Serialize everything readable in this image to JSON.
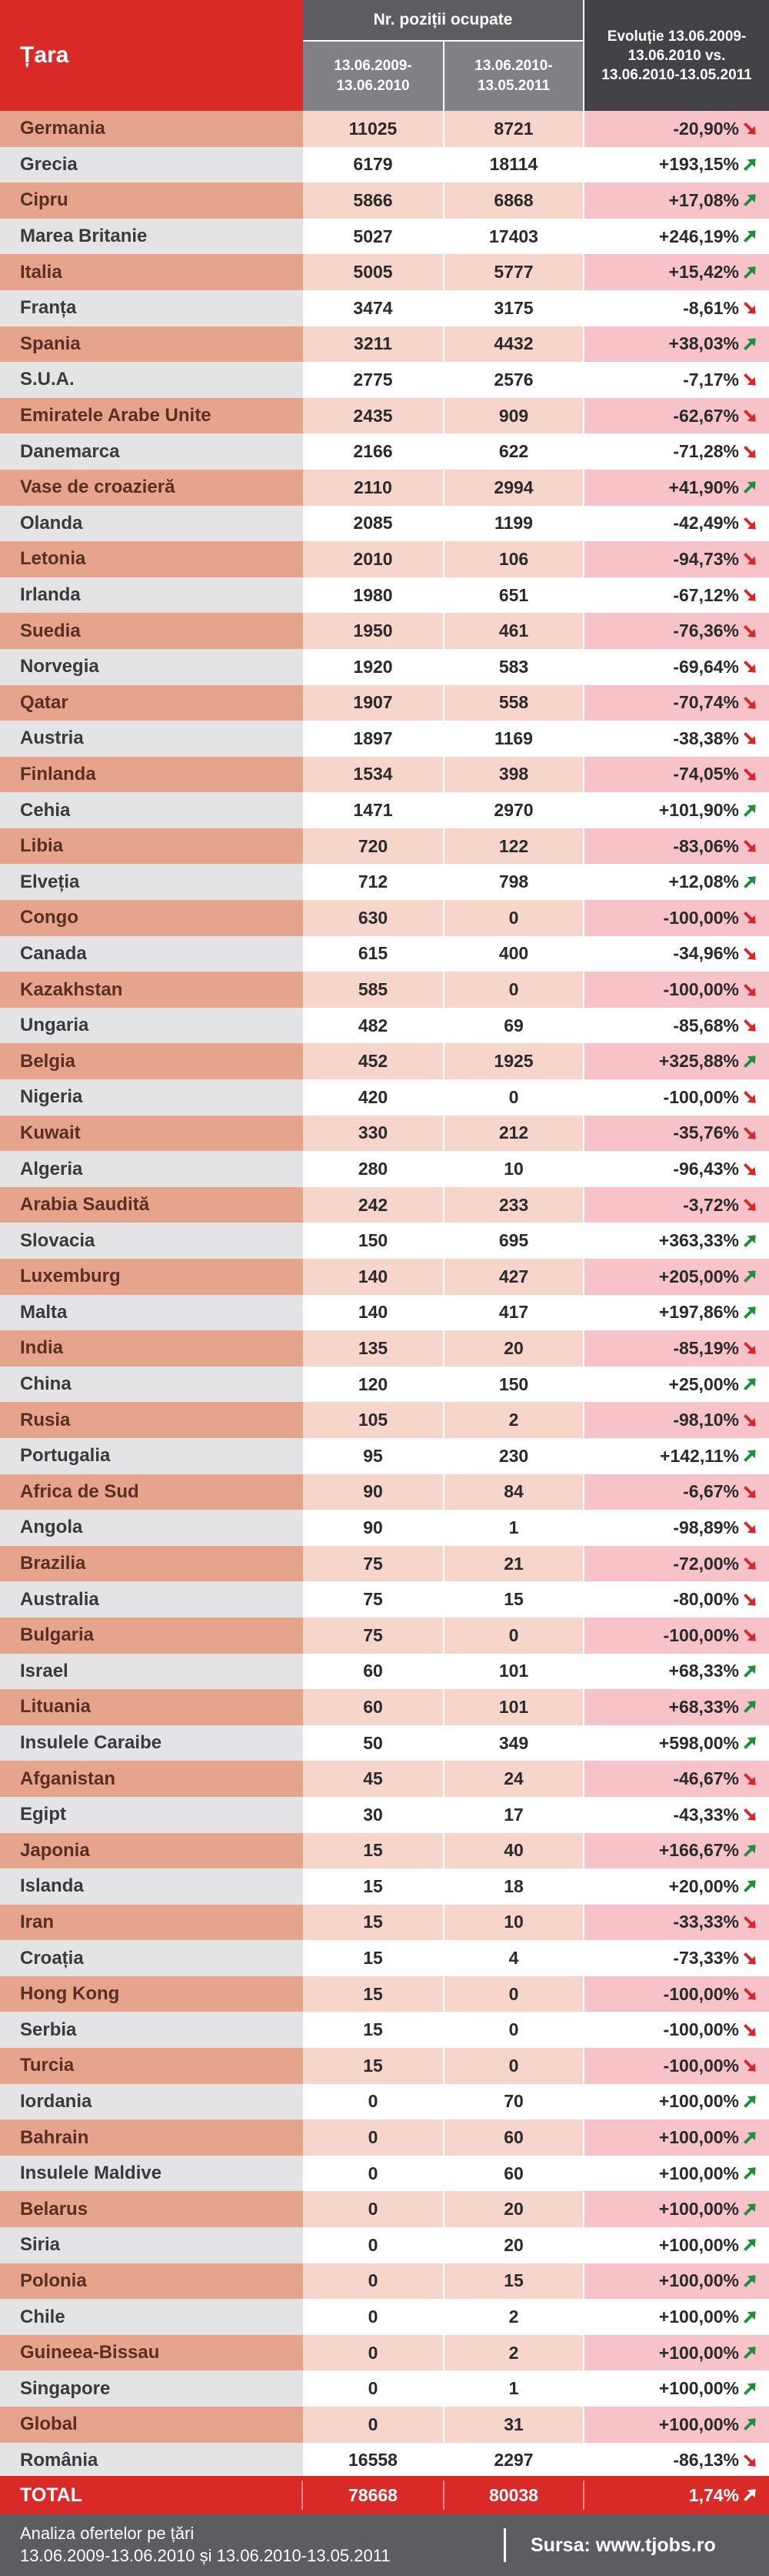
{
  "header": {
    "col_country": "Țara",
    "col_positions": "Nr. poziții ocupate",
    "col_period1": "13.06.2009-\n13.06.2010",
    "col_period2": "13.06.2010-\n13.05.2011",
    "col_evolution": "Evoluție 13.06.2009-\n13.06.2010 vs.\n13.06.2010-13.05.2011"
  },
  "colors": {
    "up": "#1e8f3a",
    "down": "#d8262a",
    "accent": "#da2a28"
  },
  "rows": [
    {
      "country": "Germania",
      "p1": "11025",
      "p2": "8721",
      "evo": "-20,90%",
      "trend": "down"
    },
    {
      "country": "Grecia",
      "p1": "6179",
      "p2": "18114",
      "evo": "+193,15%",
      "trend": "up"
    },
    {
      "country": "Cipru",
      "p1": "5866",
      "p2": "6868",
      "evo": "+17,08%",
      "trend": "up"
    },
    {
      "country": "Marea Britanie",
      "p1": "5027",
      "p2": "17403",
      "evo": "+246,19%",
      "trend": "up"
    },
    {
      "country": "Italia",
      "p1": "5005",
      "p2": "5777",
      "evo": "+15,42%",
      "trend": "up"
    },
    {
      "country": "Franța",
      "p1": "3474",
      "p2": "3175",
      "evo": "-8,61%",
      "trend": "down"
    },
    {
      "country": "Spania",
      "p1": "3211",
      "p2": "4432",
      "evo": "+38,03%",
      "trend": "up"
    },
    {
      "country": "S.U.A.",
      "p1": "2775",
      "p2": "2576",
      "evo": "-7,17%",
      "trend": "down"
    },
    {
      "country": "Emiratele Arabe Unite",
      "p1": "2435",
      "p2": "909",
      "evo": "-62,67%",
      "trend": "down"
    },
    {
      "country": "Danemarca",
      "p1": "2166",
      "p2": "622",
      "evo": "-71,28%",
      "trend": "down"
    },
    {
      "country": "Vase de croazieră",
      "p1": "2110",
      "p2": "2994",
      "evo": "+41,90%",
      "trend": "up"
    },
    {
      "country": "Olanda",
      "p1": "2085",
      "p2": "1199",
      "evo": "-42,49%",
      "trend": "down"
    },
    {
      "country": "Letonia",
      "p1": "2010",
      "p2": "106",
      "evo": "-94,73%",
      "trend": "down"
    },
    {
      "country": "Irlanda",
      "p1": "1980",
      "p2": "651",
      "evo": "-67,12%",
      "trend": "down"
    },
    {
      "country": "Suedia",
      "p1": "1950",
      "p2": "461",
      "evo": "-76,36%",
      "trend": "down"
    },
    {
      "country": "Norvegia",
      "p1": "1920",
      "p2": "583",
      "evo": "-69,64%",
      "trend": "down"
    },
    {
      "country": "Qatar",
      "p1": "1907",
      "p2": "558",
      "evo": "-70,74%",
      "trend": "down"
    },
    {
      "country": "Austria",
      "p1": "1897",
      "p2": "1169",
      "evo": "-38,38%",
      "trend": "down"
    },
    {
      "country": "Finlanda",
      "p1": "1534",
      "p2": "398",
      "evo": "-74,05%",
      "trend": "down"
    },
    {
      "country": "Cehia",
      "p1": "1471",
      "p2": "2970",
      "evo": "+101,90%",
      "trend": "up"
    },
    {
      "country": "Libia",
      "p1": "720",
      "p2": "122",
      "evo": "-83,06%",
      "trend": "down"
    },
    {
      "country": "Elveția",
      "p1": "712",
      "p2": "798",
      "evo": "+12,08%",
      "trend": "up"
    },
    {
      "country": "Congo",
      "p1": "630",
      "p2": "0",
      "evo": "-100,00%",
      "trend": "down"
    },
    {
      "country": "Canada",
      "p1": "615",
      "p2": "400",
      "evo": "-34,96%",
      "trend": "down"
    },
    {
      "country": "Kazakhstan",
      "p1": "585",
      "p2": "0",
      "evo": "-100,00%",
      "trend": "down"
    },
    {
      "country": "Ungaria",
      "p1": "482",
      "p2": "69",
      "evo": "-85,68%",
      "trend": "down"
    },
    {
      "country": "Belgia",
      "p1": "452",
      "p2": "1925",
      "evo": "+325,88%",
      "trend": "up"
    },
    {
      "country": "Nigeria",
      "p1": "420",
      "p2": "0",
      "evo": "-100,00%",
      "trend": "down"
    },
    {
      "country": "Kuwait",
      "p1": "330",
      "p2": "212",
      "evo": "-35,76%",
      "trend": "down"
    },
    {
      "country": "Algeria",
      "p1": "280",
      "p2": "10",
      "evo": "-96,43%",
      "trend": "down"
    },
    {
      "country": "Arabia Saudită",
      "p1": "242",
      "p2": "233",
      "evo": "-3,72%",
      "trend": "down"
    },
    {
      "country": "Slovacia",
      "p1": "150",
      "p2": "695",
      "evo": "+363,33%",
      "trend": "up"
    },
    {
      "country": "Luxemburg",
      "p1": "140",
      "p2": "427",
      "evo": "+205,00%",
      "trend": "up"
    },
    {
      "country": "Malta",
      "p1": "140",
      "p2": "417",
      "evo": "+197,86%",
      "trend": "up"
    },
    {
      "country": "India",
      "p1": "135",
      "p2": "20",
      "evo": "-85,19%",
      "trend": "down"
    },
    {
      "country": "China",
      "p1": "120",
      "p2": "150",
      "evo": "+25,00%",
      "trend": "up"
    },
    {
      "country": "Rusia",
      "p1": "105",
      "p2": "2",
      "evo": "-98,10%",
      "trend": "down"
    },
    {
      "country": "Portugalia",
      "p1": "95",
      "p2": "230",
      "evo": "+142,11%",
      "trend": "up"
    },
    {
      "country": "Africa de Sud",
      "p1": "90",
      "p2": "84",
      "evo": "-6,67%",
      "trend": "down"
    },
    {
      "country": "Angola",
      "p1": "90",
      "p2": "1",
      "evo": "-98,89%",
      "trend": "down"
    },
    {
      "country": "Brazilia",
      "p1": "75",
      "p2": "21",
      "evo": "-72,00%",
      "trend": "down"
    },
    {
      "country": "Australia",
      "p1": "75",
      "p2": "15",
      "evo": "-80,00%",
      "trend": "down"
    },
    {
      "country": "Bulgaria",
      "p1": "75",
      "p2": "0",
      "evo": "-100,00%",
      "trend": "down"
    },
    {
      "country": "Israel",
      "p1": "60",
      "p2": "101",
      "evo": "+68,33%",
      "trend": "up"
    },
    {
      "country": "Lituania",
      "p1": "60",
      "p2": "101",
      "evo": "+68,33%",
      "trend": "up"
    },
    {
      "country": "Insulele Caraibe",
      "p1": "50",
      "p2": "349",
      "evo": "+598,00%",
      "trend": "up"
    },
    {
      "country": "Afganistan",
      "p1": "45",
      "p2": "24",
      "evo": "-46,67%",
      "trend": "down"
    },
    {
      "country": "Egipt",
      "p1": "30",
      "p2": "17",
      "evo": "-43,33%",
      "trend": "down"
    },
    {
      "country": "Japonia",
      "p1": "15",
      "p2": "40",
      "evo": "+166,67%",
      "trend": "up"
    },
    {
      "country": "Islanda",
      "p1": "15",
      "p2": "18",
      "evo": "+20,00%",
      "trend": "up"
    },
    {
      "country": "Iran",
      "p1": "15",
      "p2": "10",
      "evo": "-33,33%",
      "trend": "down"
    },
    {
      "country": "Croația",
      "p1": "15",
      "p2": "4",
      "evo": "-73,33%",
      "trend": "down"
    },
    {
      "country": "Hong Kong",
      "p1": "15",
      "p2": "0",
      "evo": "-100,00%",
      "trend": "down"
    },
    {
      "country": "Serbia",
      "p1": "15",
      "p2": "0",
      "evo": "-100,00%",
      "trend": "down"
    },
    {
      "country": "Turcia",
      "p1": "15",
      "p2": "0",
      "evo": "-100,00%",
      "trend": "down"
    },
    {
      "country": "Iordania",
      "p1": "0",
      "p2": "70",
      "evo": "+100,00%",
      "trend": "up"
    },
    {
      "country": "Bahrain",
      "p1": "0",
      "p2": "60",
      "evo": "+100,00%",
      "trend": "up"
    },
    {
      "country": "Insulele Maldive",
      "p1": "0",
      "p2": "60",
      "evo": "+100,00%",
      "trend": "up"
    },
    {
      "country": "Belarus",
      "p1": "0",
      "p2": "20",
      "evo": "+100,00%",
      "trend": "up"
    },
    {
      "country": "Siria",
      "p1": "0",
      "p2": "20",
      "evo": "+100,00%",
      "trend": "up"
    },
    {
      "country": "Polonia",
      "p1": "0",
      "p2": "15",
      "evo": "+100,00%",
      "trend": "up"
    },
    {
      "country": "Chile",
      "p1": "0",
      "p2": "2",
      "evo": "+100,00%",
      "trend": "up"
    },
    {
      "country": "Guineea-Bissau",
      "p1": "0",
      "p2": "2",
      "evo": "+100,00%",
      "trend": "up"
    },
    {
      "country": "Singapore",
      "p1": "0",
      "p2": "1",
      "evo": "+100,00%",
      "trend": "up"
    },
    {
      "country": "Global",
      "p1": "0",
      "p2": "31",
      "evo": "+100,00%",
      "trend": "up"
    },
    {
      "country": "România",
      "p1": "16558",
      "p2": "2297",
      "evo": "-86,13%",
      "trend": "down"
    }
  ],
  "total": {
    "label": "TOTAL",
    "p1": "78668",
    "p2": "80038",
    "evo": "1,74%",
    "trend": "up"
  },
  "footer": {
    "left_line1": "Analiza ofertelor pe țări",
    "left_line2": "13.06.2009-13.06.2010 și 13.06.2010-13.05.2011",
    "source": "Sursa: www.tjobs.ro"
  }
}
